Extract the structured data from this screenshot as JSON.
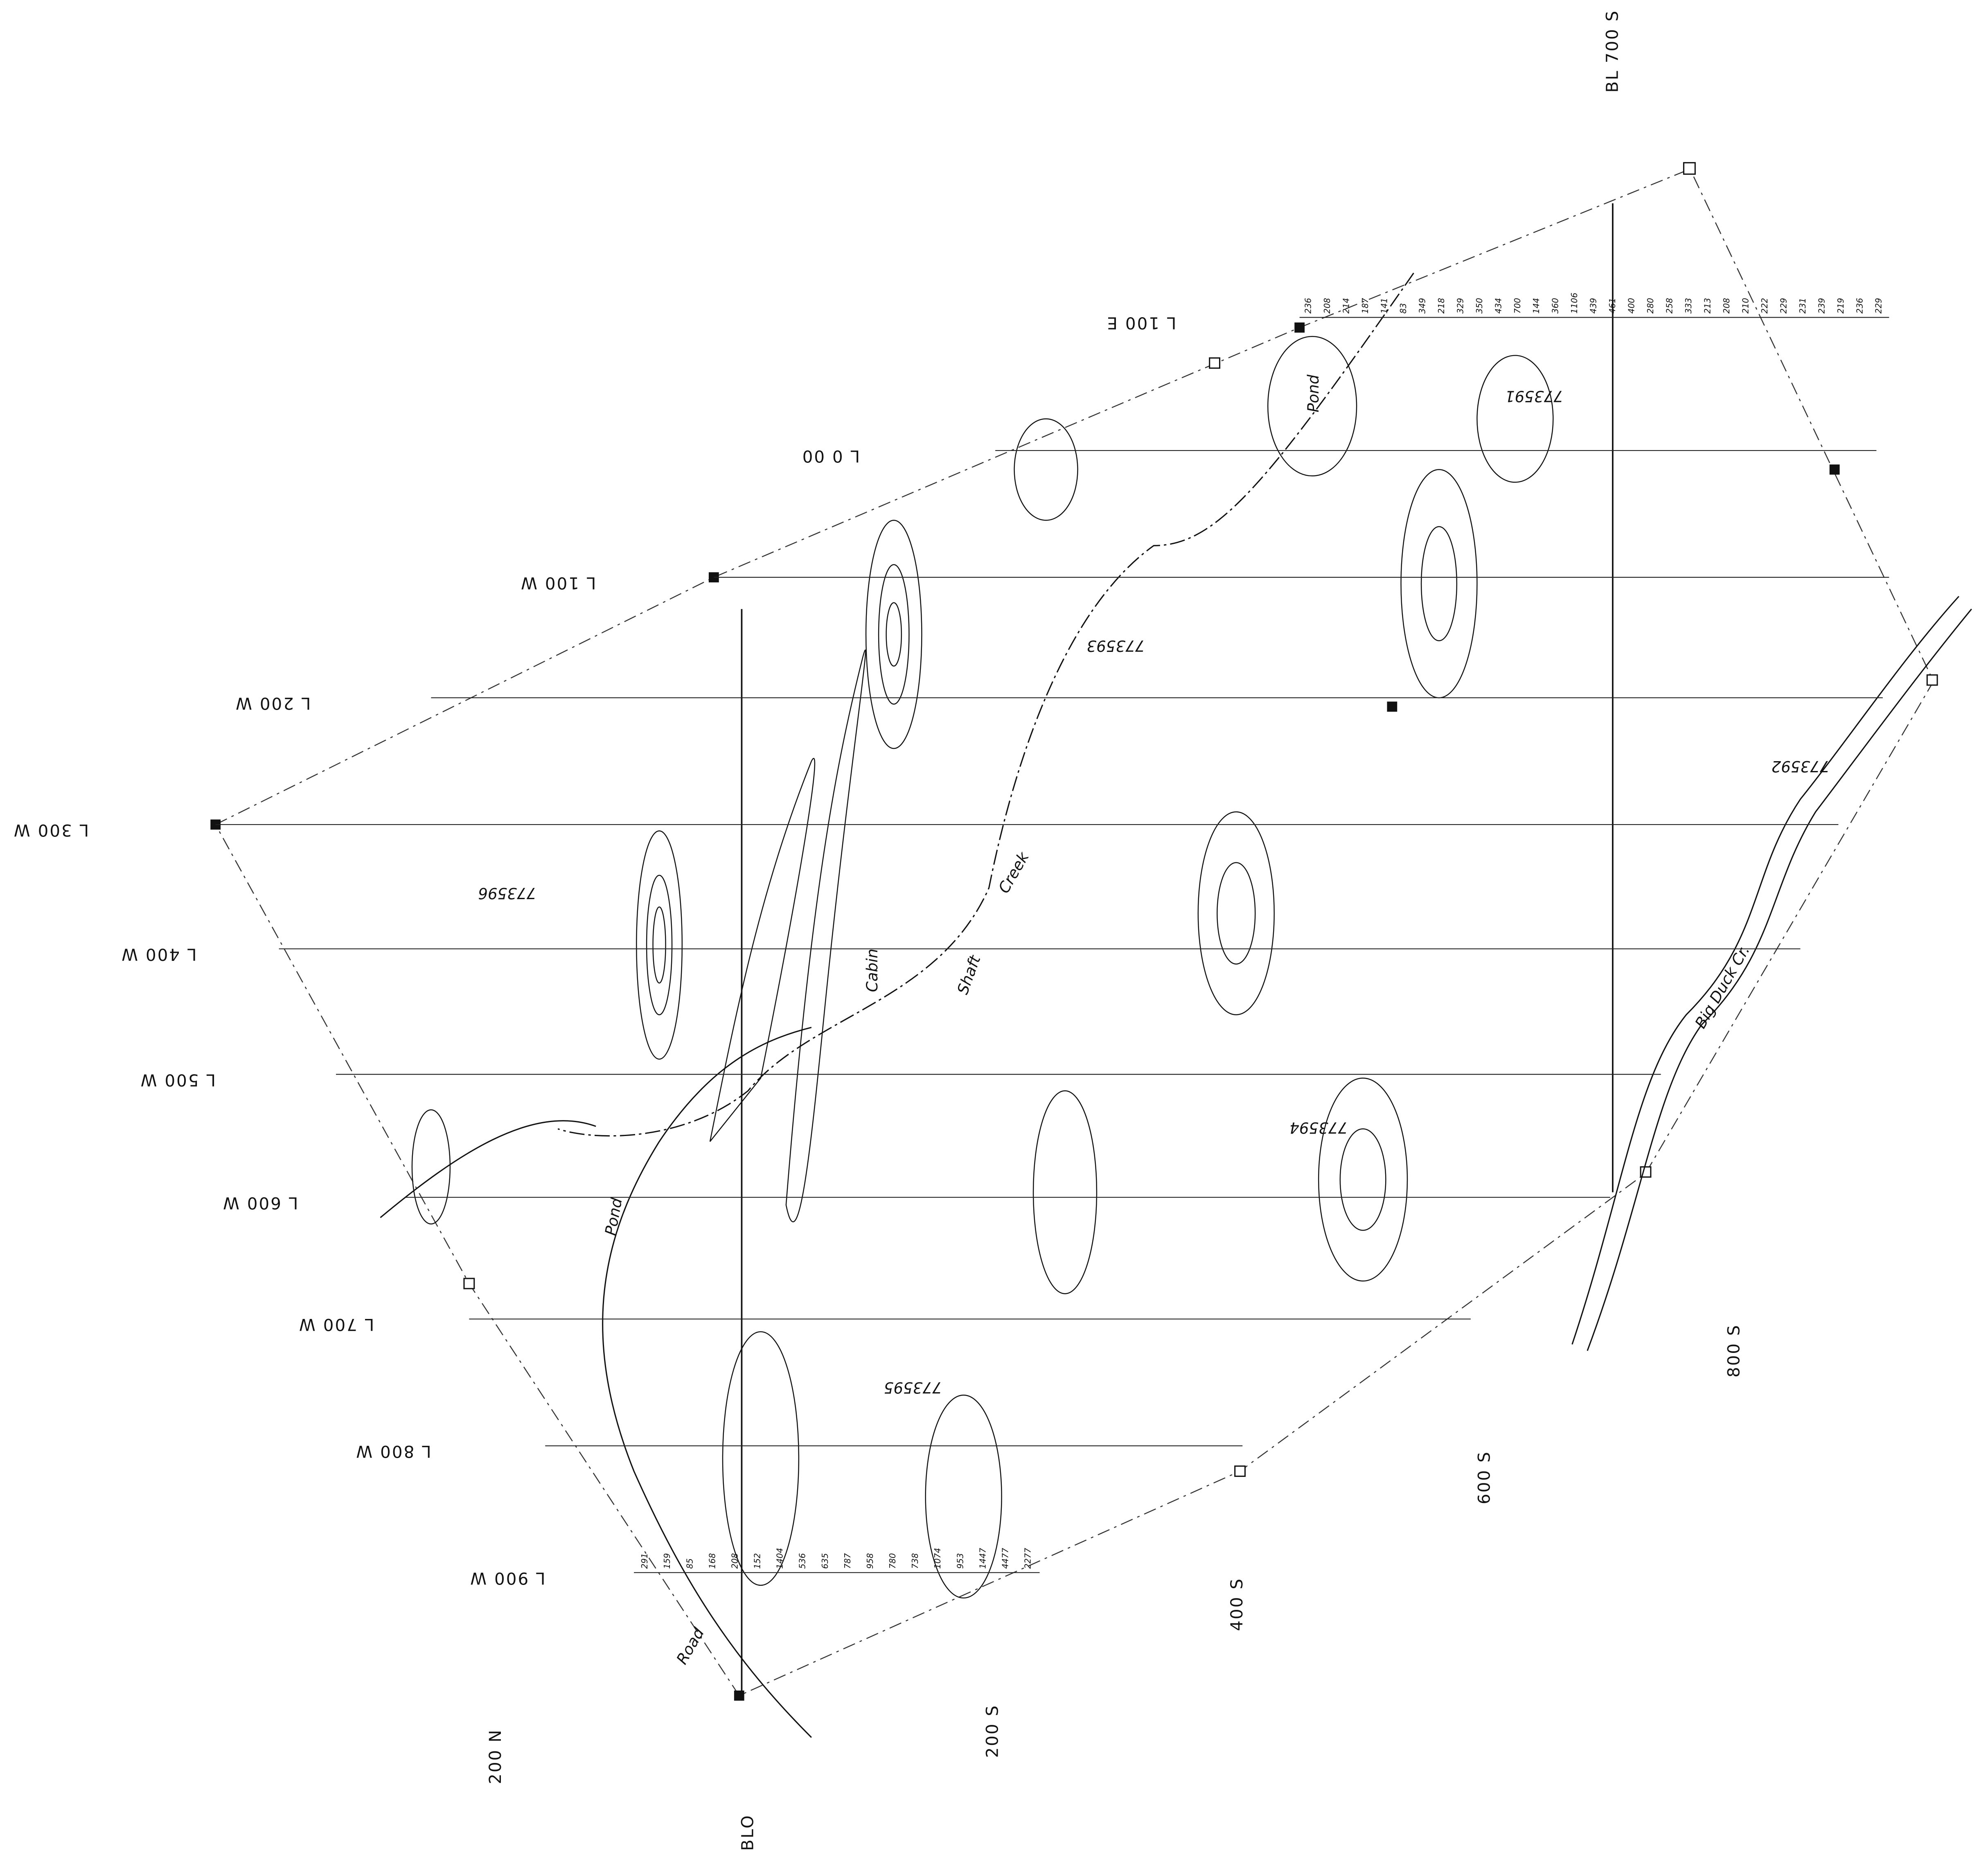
{
  "baselines": [
    {
      "label": "BL 700 S"
    },
    {
      "label": "BLO"
    }
  ],
  "survey_lines": [
    {
      "label": "L 100 E",
      "readings": [
        236,
        208,
        214,
        187,
        141,
        83,
        349,
        218,
        329,
        350,
        434,
        700,
        144,
        360,
        1106,
        439,
        461,
        400,
        280,
        258,
        333,
        213,
        208,
        210,
        222,
        229,
        231,
        239,
        219,
        236,
        229
      ]
    },
    {
      "label": "L 0 00"
    },
    {
      "label": "L 100 W"
    },
    {
      "label": "L 200 W"
    },
    {
      "label": "L 300 W"
    },
    {
      "label": "L 400 W"
    },
    {
      "label": "L 500 W"
    },
    {
      "label": "L 600 W"
    },
    {
      "label": "L 700 W"
    },
    {
      "label": "L 800 W"
    },
    {
      "label": "L 900 W",
      "readings": [
        291,
        159,
        85,
        168,
        208,
        152,
        1404,
        536,
        635,
        787,
        958,
        780,
        738,
        1074,
        953,
        1447,
        4477,
        2277
      ]
    }
  ],
  "stations": [
    "200 N",
    "200 S",
    "400 S",
    "600 S",
    "800 S"
  ],
  "claims": [
    "773591",
    "773593",
    "773592",
    "773596",
    "773594",
    "773595"
  ],
  "features": [
    "Pond",
    "Pond",
    "Creek",
    "Shaft",
    "Cabin",
    "Road",
    "Big Duck Cr."
  ]
}
